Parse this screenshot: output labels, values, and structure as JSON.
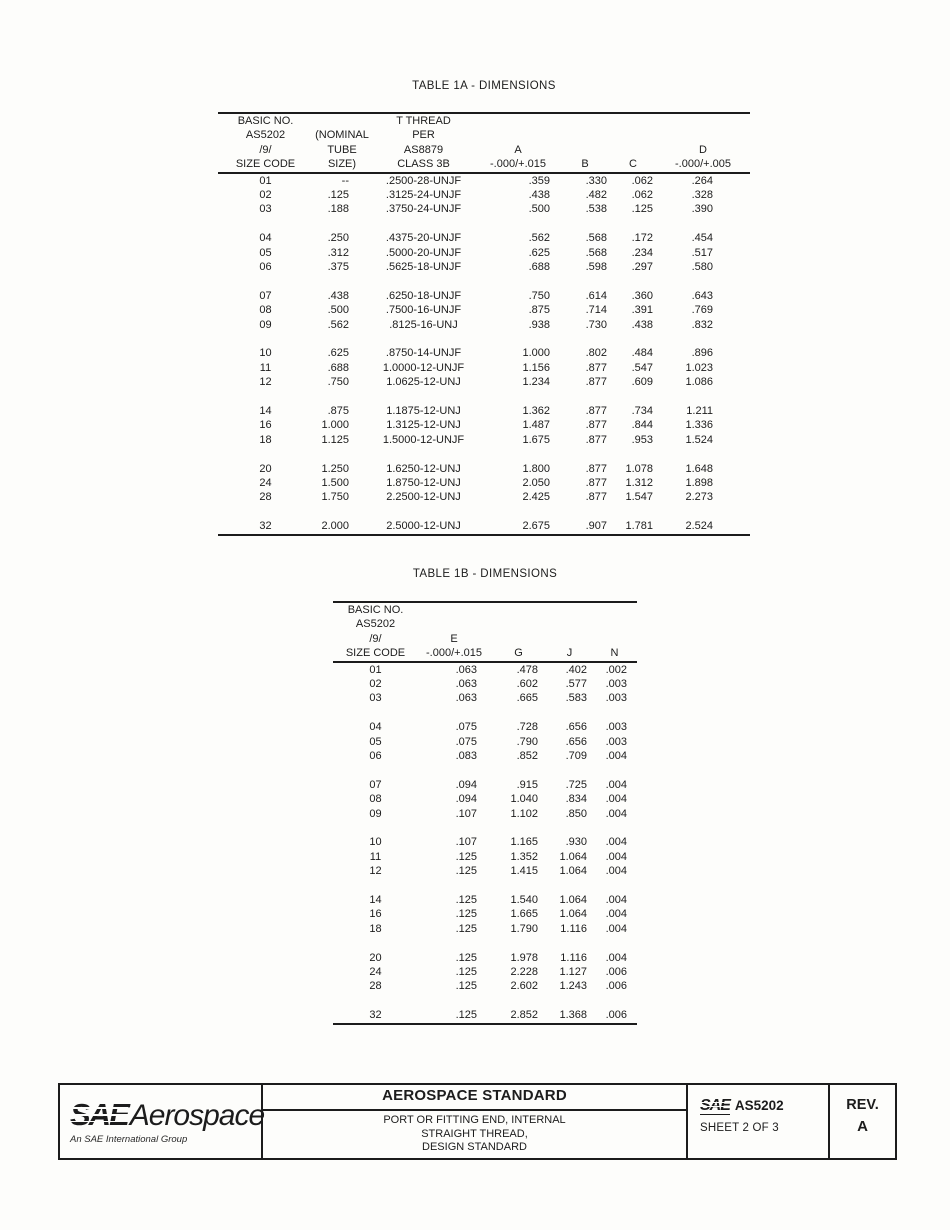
{
  "table_1a": {
    "title": "TABLE 1A - DIMENSIONS",
    "headers": [
      {
        "lines": [
          "BASIC NO.",
          "AS5202",
          "/9/",
          "SIZE CODE"
        ]
      },
      {
        "lines": [
          "",
          "(NOMINAL",
          "TUBE",
          "SIZE)"
        ]
      },
      {
        "lines": [
          "T THREAD",
          "PER",
          "AS8879",
          "CLASS 3B"
        ]
      },
      {
        "lines": [
          "",
          "",
          "A",
          "-.000/+.015"
        ]
      },
      {
        "lines": [
          "",
          "",
          "",
          "B"
        ]
      },
      {
        "lines": [
          "",
          "",
          "",
          "C"
        ]
      },
      {
        "lines": [
          "",
          "",
          "D",
          "-.000/+.005"
        ]
      }
    ],
    "groups": [
      [
        [
          "01",
          "--",
          ".2500-28-UNJF",
          ".359",
          ".330",
          ".062",
          ".264"
        ],
        [
          "02",
          ".125",
          ".3125-24-UNJF",
          ".438",
          ".482",
          ".062",
          ".328"
        ],
        [
          "03",
          ".188",
          ".3750-24-UNJF",
          ".500",
          ".538",
          ".125",
          ".390"
        ]
      ],
      [
        [
          "04",
          ".250",
          ".4375-20-UNJF",
          ".562",
          ".568",
          ".172",
          ".454"
        ],
        [
          "05",
          ".312",
          ".5000-20-UNJF",
          ".625",
          ".568",
          ".234",
          ".517"
        ],
        [
          "06",
          ".375",
          ".5625-18-UNJF",
          ".688",
          ".598",
          ".297",
          ".580"
        ]
      ],
      [
        [
          "07",
          ".438",
          ".6250-18-UNJF",
          ".750",
          ".614",
          ".360",
          ".643"
        ],
        [
          "08",
          ".500",
          ".7500-16-UNJF",
          ".875",
          ".714",
          ".391",
          ".769"
        ],
        [
          "09",
          ".562",
          ".8125-16-UNJ",
          ".938",
          ".730",
          ".438",
          ".832"
        ]
      ],
      [
        [
          "10",
          ".625",
          ".8750-14-UNJF",
          "1.000",
          ".802",
          ".484",
          ".896"
        ],
        [
          "11",
          ".688",
          "1.0000-12-UNJF",
          "1.156",
          ".877",
          ".547",
          "1.023"
        ],
        [
          "12",
          ".750",
          "1.0625-12-UNJ",
          "1.234",
          ".877",
          ".609",
          "1.086"
        ]
      ],
      [
        [
          "14",
          ".875",
          "1.1875-12-UNJ",
          "1.362",
          ".877",
          ".734",
          "1.211"
        ],
        [
          "16",
          "1.000",
          "1.3125-12-UNJ",
          "1.487",
          ".877",
          ".844",
          "1.336"
        ],
        [
          "18",
          "1.125",
          "1.5000-12-UNJF",
          "1.675",
          ".877",
          ".953",
          "1.524"
        ]
      ],
      [
        [
          "20",
          "1.250",
          "1.6250-12-UNJ",
          "1.800",
          ".877",
          "1.078",
          "1.648"
        ],
        [
          "24",
          "1.500",
          "1.8750-12-UNJ",
          "2.050",
          ".877",
          "1.312",
          "1.898"
        ],
        [
          "28",
          "1.750",
          "2.2500-12-UNJ",
          "2.425",
          ".877",
          "1.547",
          "2.273"
        ]
      ],
      [
        [
          "32",
          "2.000",
          "2.5000-12-UNJ",
          "2.675",
          ".907",
          "1.781",
          "2.524"
        ]
      ]
    ]
  },
  "table_1b": {
    "title": "TABLE 1B - DIMENSIONS",
    "headers": [
      {
        "lines": [
          "BASIC NO.",
          "AS5202",
          "/9/",
          "SIZE CODE"
        ]
      },
      {
        "lines": [
          "",
          "",
          "E",
          "-.000/+.015"
        ]
      },
      {
        "lines": [
          "",
          "",
          "",
          "G"
        ]
      },
      {
        "lines": [
          "",
          "",
          "",
          "J"
        ]
      },
      {
        "lines": [
          "",
          "",
          "",
          "N"
        ]
      }
    ],
    "groups": [
      [
        [
          "01",
          ".063",
          ".478",
          ".402",
          ".002"
        ],
        [
          "02",
          ".063",
          ".602",
          ".577",
          ".003"
        ],
        [
          "03",
          ".063",
          ".665",
          ".583",
          ".003"
        ]
      ],
      [
        [
          "04",
          ".075",
          ".728",
          ".656",
          ".003"
        ],
        [
          "05",
          ".075",
          ".790",
          ".656",
          ".003"
        ],
        [
          "06",
          ".083",
          ".852",
          ".709",
          ".004"
        ]
      ],
      [
        [
          "07",
          ".094",
          ".915",
          ".725",
          ".004"
        ],
        [
          "08",
          ".094",
          "1.040",
          ".834",
          ".004"
        ],
        [
          "09",
          ".107",
          "1.102",
          ".850",
          ".004"
        ]
      ],
      [
        [
          "10",
          ".107",
          "1.165",
          ".930",
          ".004"
        ],
        [
          "11",
          ".125",
          "1.352",
          "1.064",
          ".004"
        ],
        [
          "12",
          ".125",
          "1.415",
          "1.064",
          ".004"
        ]
      ],
      [
        [
          "14",
          ".125",
          "1.540",
          "1.064",
          ".004"
        ],
        [
          "16",
          ".125",
          "1.665",
          "1.064",
          ".004"
        ],
        [
          "18",
          ".125",
          "1.790",
          "1.116",
          ".004"
        ]
      ],
      [
        [
          "20",
          ".125",
          "1.978",
          "1.116",
          ".004"
        ],
        [
          "24",
          ".125",
          "2.228",
          "1.127",
          ".006"
        ],
        [
          "28",
          ".125",
          "2.602",
          "1.243",
          ".006"
        ]
      ],
      [
        [
          "32",
          ".125",
          "2.852",
          "1.368",
          ".006"
        ]
      ]
    ]
  },
  "footer": {
    "logo": {
      "sae": "SAE",
      "aerospace": "Aerospace",
      "tagline": "An SAE International Group"
    },
    "banner_title": "AEROSPACE STANDARD",
    "subtitle_lines": [
      "PORT OR FITTING END, INTERNAL",
      "STRAIGHT THREAD,",
      "DESIGN STANDARD"
    ],
    "doc": {
      "sae": "SAE",
      "number": "AS5202",
      "sheet": "SHEET 2 OF 3"
    },
    "rev": {
      "label": "REV.",
      "value": "A"
    }
  }
}
